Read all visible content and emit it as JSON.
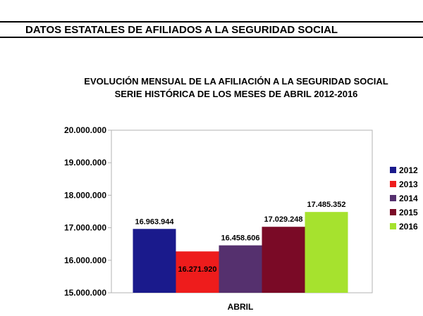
{
  "page": {
    "header": "DATOS ESTATALES DE  AFILIADOS A LA SEGURIDAD SOCIAL"
  },
  "chart_data": {
    "type": "bar",
    "title": "EVOLUCIÓN MENSUAL DE LA  AFILIACIÓN A LA SEGURIDAD SOCIAL",
    "subtitle": "SERIE HISTÓRICA DE LOS MESES DE ABRIL 2012-2016",
    "categories": [
      "ABRIL"
    ],
    "series": [
      {
        "name": "2012",
        "values": [
          16963944
        ],
        "label": "16.963.944",
        "color": "#1a1a8c"
      },
      {
        "name": "2013",
        "values": [
          16271920
        ],
        "label": "16.271.920",
        "color": "#ee1c1c"
      },
      {
        "name": "2014",
        "values": [
          16458606
        ],
        "label": "16.458.606",
        "color": "#55306e"
      },
      {
        "name": "2015",
        "values": [
          17029248
        ],
        "label": "17.029.248",
        "color": "#7a0a26"
      },
      {
        "name": "2016",
        "values": [
          17485352
        ],
        "label": "17.485.352",
        "color": "#a6e22e"
      }
    ],
    "ylim": [
      15000000,
      20000000
    ],
    "yticks": [
      15000000,
      16000000,
      17000000,
      18000000,
      19000000,
      20000000
    ],
    "ytick_labels": [
      "15.000.000",
      "16.000.000",
      "17.000.000",
      "18.000.000",
      "19.000.000",
      "20.000.000"
    ],
    "xlabel": "",
    "ylabel": "",
    "legend_position": "right",
    "grid": false
  }
}
